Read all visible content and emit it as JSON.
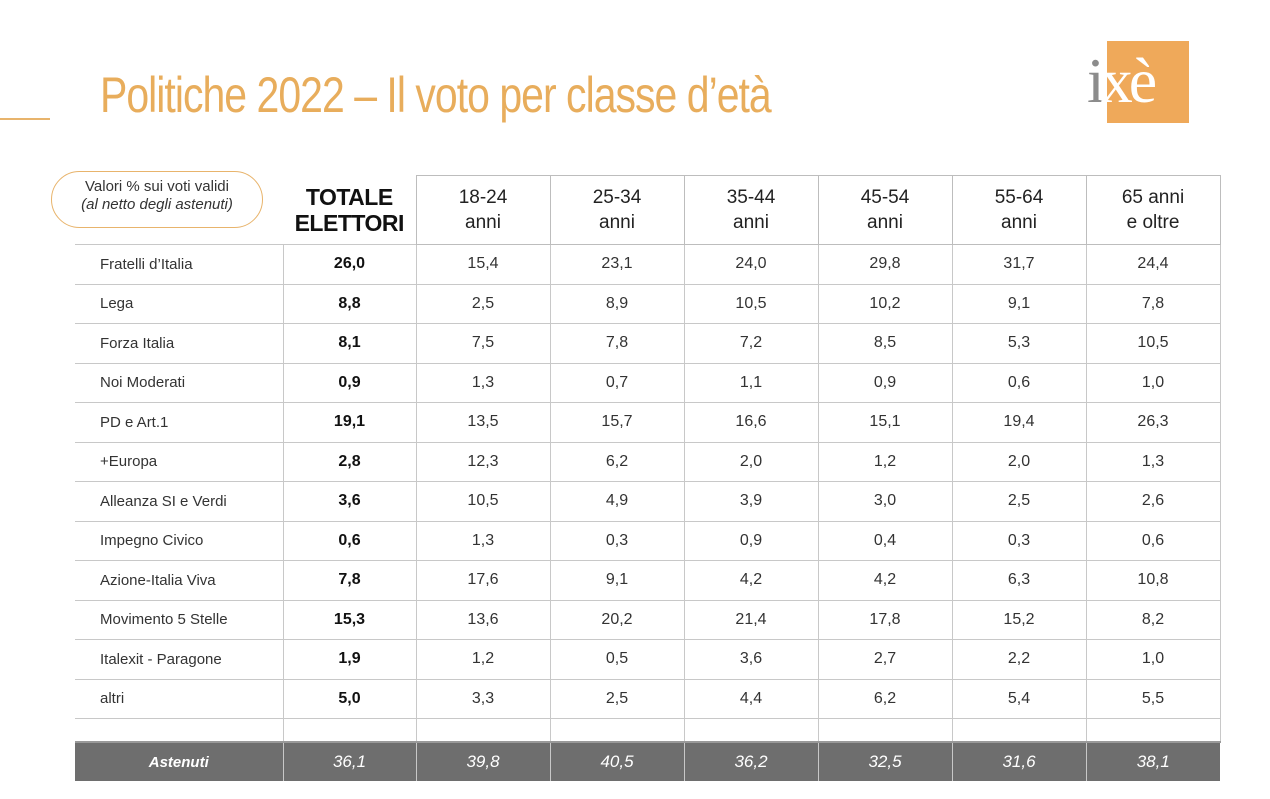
{
  "title": "Politiche 2022 – Il voto per classe d’età",
  "logo": {
    "text_i": "i",
    "text_xe": "xè",
    "color": "#efa95a"
  },
  "note": {
    "line1": "Valori % sui voti validi",
    "line2": "(al netto degli astenuti)"
  },
  "columns": {
    "total": {
      "line1": "TOTALE",
      "line2": "ELETTORI"
    },
    "ages": [
      {
        "line1": "18-24",
        "line2": "anni"
      },
      {
        "line1": "25-34",
        "line2": "anni"
      },
      {
        "line1": "35-44",
        "line2": "anni"
      },
      {
        "line1": "45-54",
        "line2": "anni"
      },
      {
        "line1": "55-64",
        "line2": "anni"
      },
      {
        "line1": "65 anni",
        "line2": "e oltre"
      }
    ]
  },
  "rows": [
    {
      "party": "Fratelli d’Italia",
      "values": [
        "26,0",
        "15,4",
        "23,1",
        "24,0",
        "29,8",
        "31,7",
        "24,4"
      ]
    },
    {
      "party": "Lega",
      "values": [
        "8,8",
        "2,5",
        "8,9",
        "10,5",
        "10,2",
        "9,1",
        "7,8"
      ]
    },
    {
      "party": "Forza Italia",
      "values": [
        "8,1",
        "7,5",
        "7,8",
        "7,2",
        "8,5",
        "5,3",
        "10,5"
      ]
    },
    {
      "party": "Noi Moderati",
      "values": [
        "0,9",
        "1,3",
        "0,7",
        "1,1",
        "0,9",
        "0,6",
        "1,0"
      ]
    },
    {
      "party": "PD e Art.1",
      "values": [
        "19,1",
        "13,5",
        "15,7",
        "16,6",
        "15,1",
        "19,4",
        "26,3"
      ]
    },
    {
      "party": "+Europa",
      "values": [
        "2,8",
        "12,3",
        "6,2",
        "2,0",
        "1,2",
        "2,0",
        "1,3"
      ]
    },
    {
      "party": "Alleanza SI e Verdi",
      "values": [
        "3,6",
        "10,5",
        "4,9",
        "3,9",
        "3,0",
        "2,5",
        "2,6"
      ]
    },
    {
      "party": "Impegno Civico",
      "values": [
        "0,6",
        "1,3",
        "0,3",
        "0,9",
        "0,4",
        "0,3",
        "0,6"
      ]
    },
    {
      "party": "Azione-Italia Viva",
      "values": [
        "7,8",
        "17,6",
        "9,1",
        "4,2",
        "4,2",
        "6,3",
        "10,8"
      ]
    },
    {
      "party": "Movimento 5 Stelle",
      "values": [
        "15,3",
        "13,6",
        "20,2",
        "21,4",
        "17,8",
        "15,2",
        "8,2"
      ]
    },
    {
      "party": "Italexit - Paragone",
      "values": [
        "1,9",
        "1,2",
        "0,5",
        "3,6",
        "2,7",
        "2,2",
        "1,0"
      ]
    },
    {
      "party": "altri",
      "values": [
        "5,0",
        "3,3",
        "2,5",
        "4,4",
        "6,2",
        "5,4",
        "5,5"
      ]
    }
  ],
  "astenuti": {
    "label": "Astenuti",
    "values": [
      "36,1",
      "39,8",
      "40,5",
      "36,2",
      "32,5",
      "31,6",
      "38,1"
    ]
  }
}
